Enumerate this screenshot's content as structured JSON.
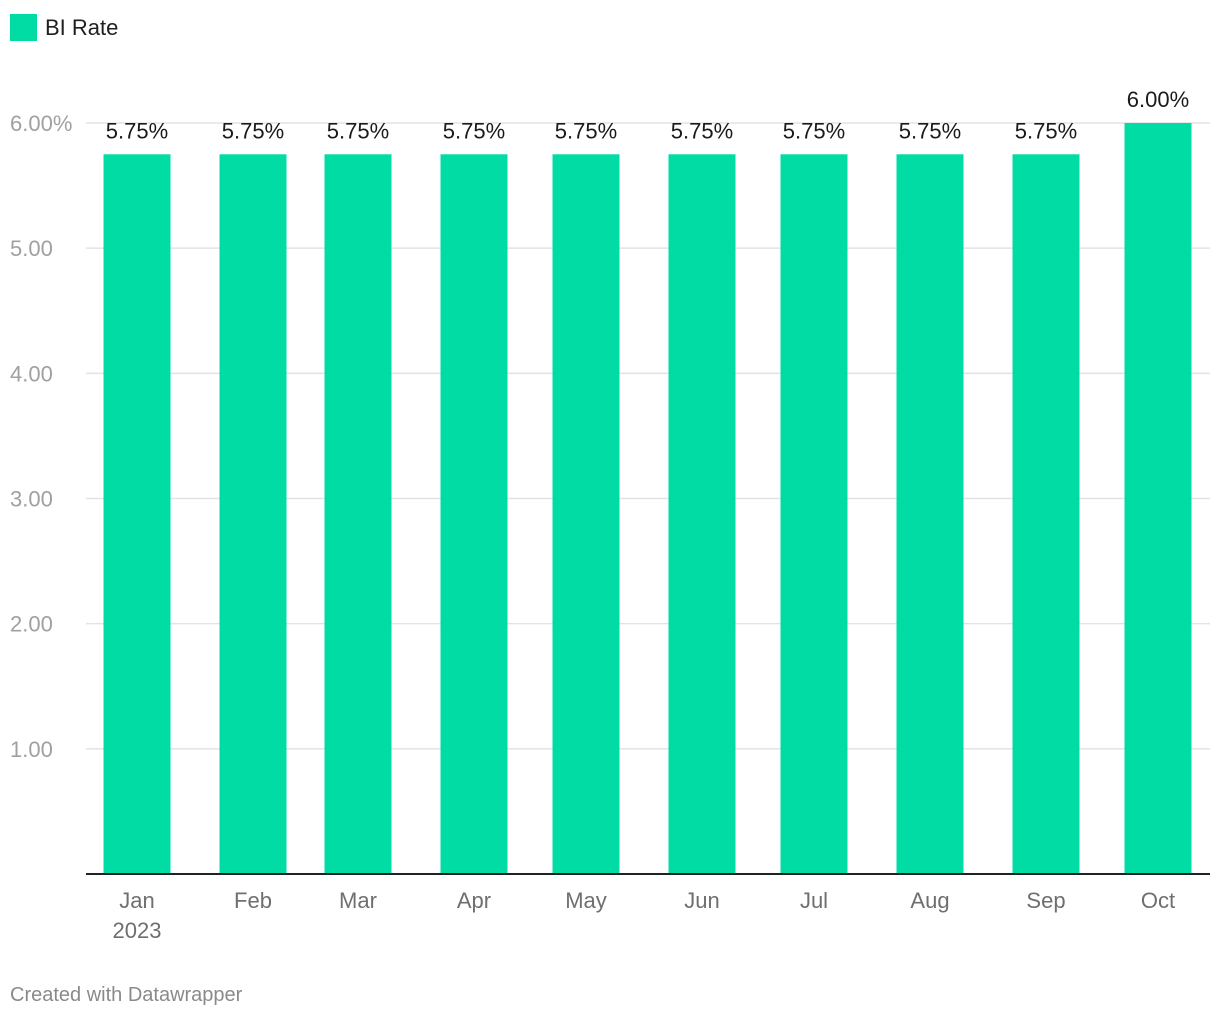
{
  "chart_data": {
    "type": "bar",
    "categories": [
      "Jan",
      "Feb",
      "Mar",
      "Apr",
      "May",
      "Jun",
      "Jul",
      "Aug",
      "Sep",
      "Oct"
    ],
    "category_sublabels": [
      "2023",
      "",
      "",
      "",
      "",
      "",
      "",
      "",
      "",
      ""
    ],
    "series": [
      {
        "name": "BI Rate",
        "values": [
          5.75,
          5.75,
          5.75,
          5.75,
          5.75,
          5.75,
          5.75,
          5.75,
          5.75,
          6.0
        ],
        "value_labels": [
          "5.75%",
          "5.75%",
          "5.75%",
          "5.75%",
          "5.75%",
          "5.75%",
          "5.75%",
          "5.75%",
          "5.75%",
          "6.00%"
        ],
        "color": "#00dca4"
      }
    ],
    "yticks": [
      {
        "value": 6,
        "label": "6.00%"
      },
      {
        "value": 5,
        "label": "5.00"
      },
      {
        "value": 4,
        "label": "4.00"
      },
      {
        "value": 3,
        "label": "3.00"
      },
      {
        "value": 2,
        "label": "2.00"
      },
      {
        "value": 1,
        "label": "1.00"
      }
    ],
    "ylim": [
      0,
      6
    ],
    "grid": true,
    "legend_position": "top-left",
    "title": "",
    "xlabel": "",
    "ylabel": ""
  },
  "legend": {
    "label": "BI Rate"
  },
  "footer": {
    "credit": "Created with Datawrapper"
  },
  "colors": {
    "bar": "#00dca4",
    "grid": "#e3e3e3",
    "axis": "#222222"
  }
}
